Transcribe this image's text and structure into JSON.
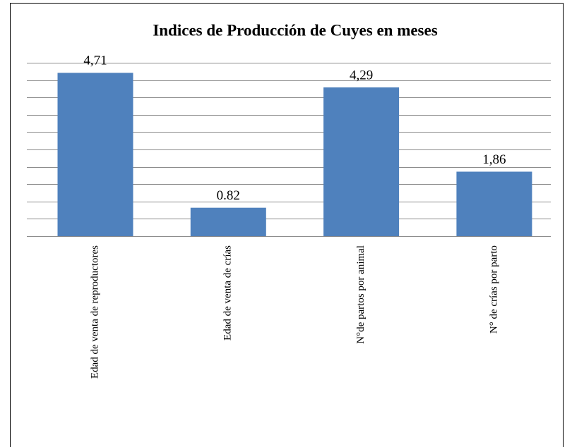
{
  "chart_data": {
    "type": "bar",
    "title": "Indices de Producción de Cuyes en meses",
    "categories": [
      "Edad de venta de reproductores",
      "Edad de venta de crías",
      "N°de partos por animal",
      "N° de crías por parto"
    ],
    "values": [
      4.71,
      0.82,
      4.29,
      1.86
    ],
    "value_labels": [
      "4,71",
      "0.82",
      "4,29",
      "1,86"
    ],
    "color": "#4f81bd",
    "ylim": [
      0,
      5
    ],
    "yticks": [
      0,
      0.5,
      1,
      1.5,
      2,
      2.5,
      3,
      3.5,
      4,
      4.5,
      5
    ],
    "grid": true
  }
}
